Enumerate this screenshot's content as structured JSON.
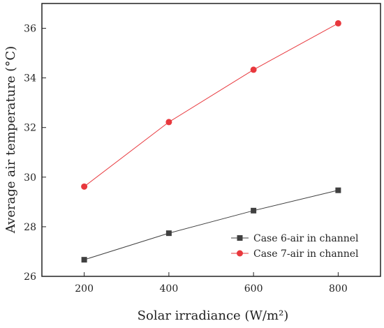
{
  "chart_data": {
    "type": "line",
    "xlabel": "Solar irradiance (W/m²)",
    "ylabel": "Average air temperature (°C)",
    "x": [
      200,
      400,
      600,
      800
    ],
    "xlim": [
      100,
      900
    ],
    "ylim": [
      26,
      37
    ],
    "x_ticks": [
      "200",
      "400",
      "600",
      "800"
    ],
    "y_ticks": [
      "26",
      "28",
      "30",
      "32",
      "34",
      "36"
    ],
    "grid": false,
    "legend_position": "lower-right",
    "series": [
      {
        "name": "Case 6-air in channel",
        "values": [
          26.67,
          27.74,
          28.65,
          29.47
        ],
        "color": "#404040",
        "marker": "square"
      },
      {
        "name": "Case 7-air in channel",
        "values": [
          29.62,
          32.22,
          34.33,
          36.2
        ],
        "color": "#e8383d",
        "marker": "circle"
      }
    ]
  }
}
